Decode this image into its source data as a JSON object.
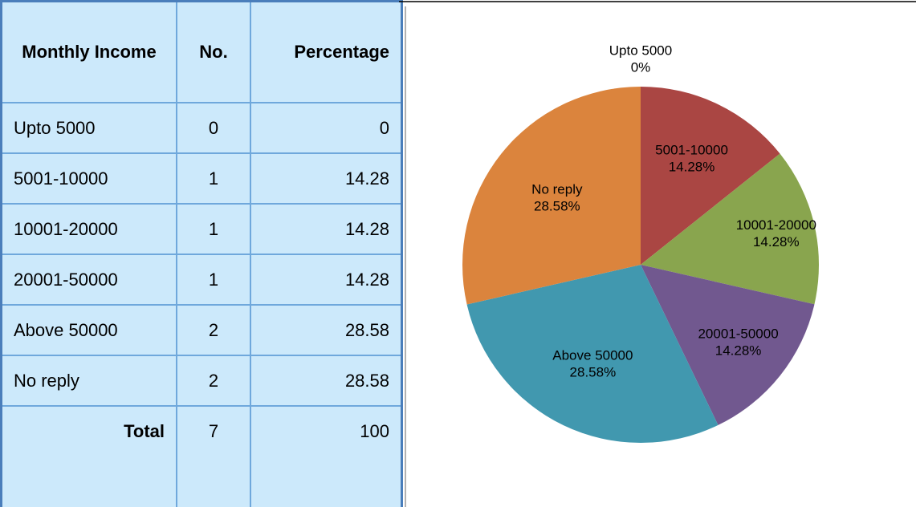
{
  "table": {
    "header": [
      "Monthly Income",
      "No.",
      "Percentage"
    ],
    "rows": [
      [
        "Upto 5000",
        0,
        0
      ],
      [
        "5001-10000",
        1,
        14.28
      ],
      [
        "10001-20000",
        1,
        14.28
      ],
      [
        "20001-50000",
        1,
        14.28
      ],
      [
        "Above 50000",
        2,
        28.58
      ],
      [
        "No reply",
        2,
        28.58
      ]
    ],
    "total": [
      "Total",
      7,
      100
    ]
  },
  "chart_data": {
    "type": "pie",
    "categories": [
      "Upto 5000",
      "5001-10000",
      "10001-20000",
      "20001-50000",
      "Above 50000",
      "No reply"
    ],
    "values": [
      0,
      14.28,
      14.28,
      14.28,
      28.58,
      28.58
    ],
    "value_labels": [
      "0%",
      "14.28%",
      "14.28%",
      "14.28%",
      "28.58%",
      "28.58%"
    ],
    "colors": [
      "#4572a7",
      "#aa4643",
      "#89a54e",
      "#71588f",
      "#4198af",
      "#db843d"
    ]
  }
}
